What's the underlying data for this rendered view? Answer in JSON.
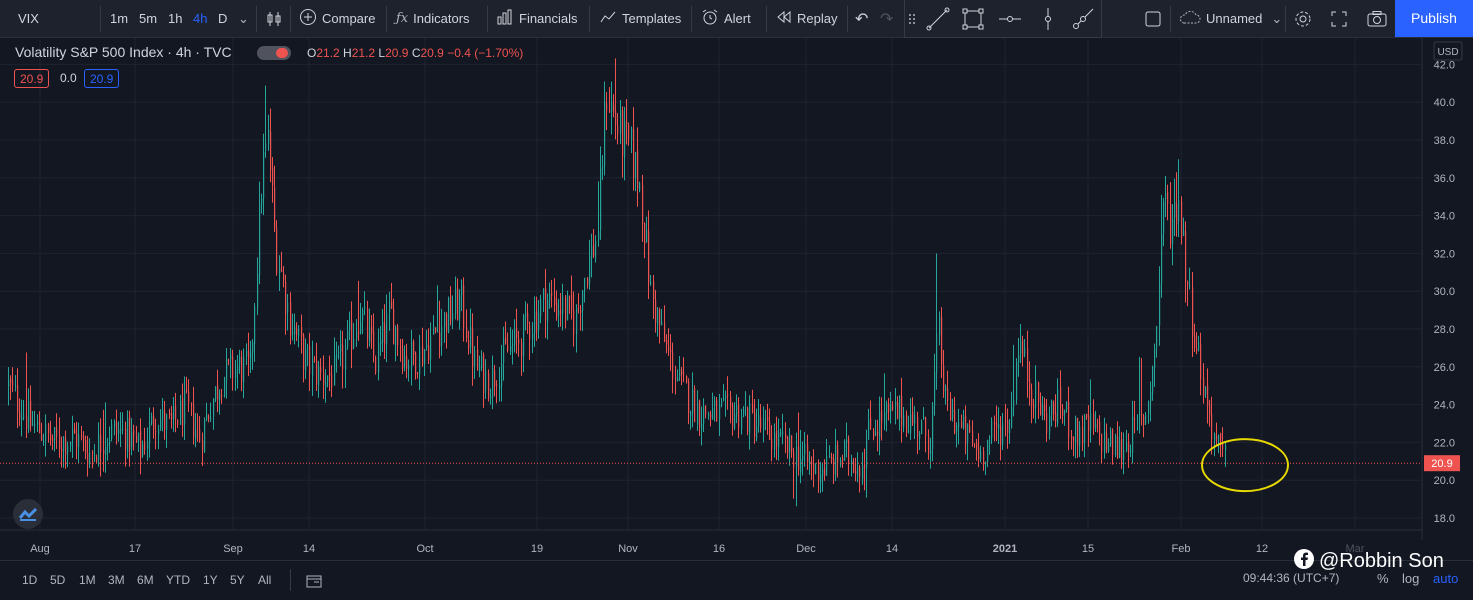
{
  "toolbar": {
    "symbol": "VIX",
    "timeframes": [
      "1m",
      "5m",
      "1h",
      "4h",
      "D"
    ],
    "active_timeframe": "4h",
    "compare": "Compare",
    "indicators": "Indicators",
    "financials": "Financials",
    "templates": "Templates",
    "alert": "Alert",
    "replay": "Replay",
    "layout_name": "Unnamed",
    "publish": "Publish"
  },
  "legend": {
    "title": "Volatility S&P 500 Index · 4h · TVC",
    "open_label": "O",
    "open": "21.2",
    "high_label": "H",
    "high": "21.2",
    "low_label": "L",
    "low": "20.9",
    "close_label": "C",
    "close": "20.9",
    "change": "−0.4 (−1.70%)",
    "bid": "20.9",
    "spread": "0.0",
    "ask": "20.9"
  },
  "bottom": {
    "ranges": [
      "1D",
      "5D",
      "1M",
      "3M",
      "6M",
      "YTD",
      "1Y",
      "5Y",
      "All"
    ],
    "time": "09:44:36 (UTC+7)",
    "percent": "%",
    "log": "log",
    "auto": "auto"
  },
  "watermark": "@Robbin Son",
  "colors": {
    "up": "#26a69a",
    "down": "#ef5350",
    "background": "#131722",
    "accent": "#2962ff",
    "highlight": "#e8d900"
  },
  "chart_data": {
    "type": "candlestick",
    "currency": "USD",
    "ylim": [
      17.5,
      42.5
    ],
    "y_ticks": [
      "18.0",
      "20.0",
      "22.0",
      "24.0",
      "26.0",
      "28.0",
      "30.0",
      "32.0",
      "34.0",
      "36.0",
      "38.0",
      "40.0",
      "42.0"
    ],
    "x_labels": [
      "Aug",
      "17",
      "Sep",
      "14",
      "Oct",
      "19",
      "Nov",
      "16",
      "Dec",
      "14",
      "2021",
      "15",
      "Feb",
      "12",
      "Mar"
    ],
    "last_price": "20.9",
    "anchors": [
      [
        0,
        25.9
      ],
      [
        10,
        24.8
      ],
      [
        30,
        23.0
      ],
      [
        55,
        22.0
      ],
      [
        75,
        22.3
      ],
      [
        90,
        21.4
      ],
      [
        110,
        22.6
      ],
      [
        125,
        22.5
      ],
      [
        140,
        21.6
      ],
      [
        155,
        23.4
      ],
      [
        170,
        22.8
      ],
      [
        185,
        23.9
      ],
      [
        200,
        22.2
      ],
      [
        210,
        24.0
      ],
      [
        222,
        25.5
      ],
      [
        238,
        26.0
      ],
      [
        250,
        25.8
      ],
      [
        262,
        36.5
      ],
      [
        268,
        38.0
      ],
      [
        275,
        32.5
      ],
      [
        290,
        28.5
      ],
      [
        305,
        26.3
      ],
      [
        320,
        25.5
      ],
      [
        335,
        25.6
      ],
      [
        345,
        26.8
      ],
      [
        360,
        29.0
      ],
      [
        375,
        26.2
      ],
      [
        390,
        28.8
      ],
      [
        405,
        26.4
      ],
      [
        420,
        26.7
      ],
      [
        440,
        28.2
      ],
      [
        460,
        29.5
      ],
      [
        475,
        26.0
      ],
      [
        490,
        25.2
      ],
      [
        505,
        26.7
      ],
      [
        520,
        27.5
      ],
      [
        545,
        29.6
      ],
      [
        560,
        29.2
      ],
      [
        575,
        28.5
      ],
      [
        585,
        31.0
      ],
      [
        597,
        33.0
      ],
      [
        606,
        40.5
      ],
      [
        615,
        39.0
      ],
      [
        622,
        38.0
      ],
      [
        630,
        37.5
      ],
      [
        640,
        35.5
      ],
      [
        650,
        30.0
      ],
      [
        665,
        27.0
      ],
      [
        680,
        25.0
      ],
      [
        700,
        23.6
      ],
      [
        720,
        23.5
      ],
      [
        740,
        23.6
      ],
      [
        760,
        22.8
      ],
      [
        780,
        21.9
      ],
      [
        800,
        21.2
      ],
      [
        815,
        20.5
      ],
      [
        830,
        20.8
      ],
      [
        845,
        21.4
      ],
      [
        860,
        20.8
      ],
      [
        870,
        22.8
      ],
      [
        885,
        23.3
      ],
      [
        900,
        23.6
      ],
      [
        915,
        23.0
      ],
      [
        930,
        22.2
      ],
      [
        938,
        28.0
      ],
      [
        945,
        24.0
      ],
      [
        960,
        22.7
      ],
      [
        980,
        21.4
      ],
      [
        995,
        22.6
      ],
      [
        1010,
        23.2
      ],
      [
        1018,
        27.5
      ],
      [
        1030,
        25.0
      ],
      [
        1045,
        23.2
      ],
      [
        1060,
        24.0
      ],
      [
        1075,
        22.4
      ],
      [
        1090,
        22.8
      ],
      [
        1105,
        22.0
      ],
      [
        1120,
        21.6
      ],
      [
        1135,
        22.7
      ],
      [
        1145,
        23.5
      ],
      [
        1155,
        27.0
      ],
      [
        1163,
        35.0
      ],
      [
        1170,
        33.5
      ],
      [
        1178,
        35.0
      ],
      [
        1188,
        30.0
      ],
      [
        1195,
        27.5
      ],
      [
        1205,
        24.5
      ],
      [
        1215,
        22.0
      ],
      [
        1222,
        21.2
      ],
      [
        1226,
        20.9
      ]
    ],
    "spikes": [
      [
        26,
        3
      ],
      [
        104,
        1.8
      ],
      [
        265,
        2
      ],
      [
        358,
        2.2
      ],
      [
        438,
        1.6
      ],
      [
        597,
        1.5
      ],
      [
        615,
        1.5
      ],
      [
        799,
        0.9
      ],
      [
        884,
        1.8
      ],
      [
        937,
        3.2
      ],
      [
        1014,
        2.1
      ],
      [
        1090,
        1.4
      ],
      [
        1140,
        2.5
      ],
      [
        1161,
        2.0
      ],
      [
        1177,
        1.4
      ]
    ],
    "dips": [
      [
        100,
        1.0
      ],
      [
        795,
        1.4
      ],
      [
        865,
        1.2
      ]
    ],
    "highlight_circle": {
      "center_date": "Feb 8",
      "center_value": 20.8
    }
  }
}
